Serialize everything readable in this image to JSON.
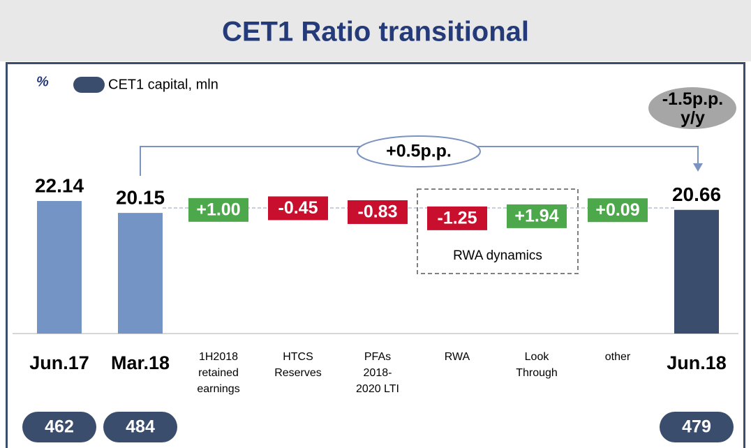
{
  "chart_data": {
    "type": "waterfall",
    "title": "CET1 Ratio transitional",
    "unit": "%",
    "categories": [
      "Jun.17",
      "Mar.18",
      "1H2018 retained earnings",
      "HTCS Reserves",
      "PFAs 2018-2020 LTI",
      "RWA",
      "Look Through",
      "other",
      "Jun.18"
    ],
    "totals": [
      true,
      true,
      false,
      false,
      false,
      false,
      false,
      false,
      true
    ],
    "values": [
      22.14,
      20.15,
      1.0,
      -0.45,
      -0.83,
      -1.25,
      1.94,
      0.09,
      20.66
    ],
    "value_labels": [
      "22.14",
      "20.15",
      "+1.00",
      "-0.45",
      "-0.83",
      "-1.25",
      "+1.94",
      "+0.09",
      "20.66"
    ],
    "colors": [
      "#7394c4",
      "#7394c4",
      "#4ca84a",
      "#c8102e",
      "#c8102e",
      "#c8102e",
      "#4ca84a",
      "#4ca84a",
      "#3a4d6d"
    ],
    "capital": {
      "name": "CET1 capital, mln",
      "color": "#3a4d6d",
      "values": [
        462,
        484,
        null,
        null,
        null,
        null,
        null,
        null,
        479
      ]
    },
    "annotations": [
      "-1.5p.p. y/y",
      "+0.5p.p.",
      "RWA dynamics"
    ]
  }
}
